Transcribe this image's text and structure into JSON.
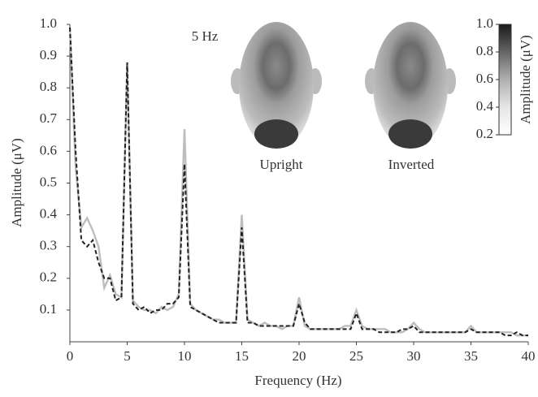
{
  "chart_data": {
    "type": "line",
    "x_label": "Frequency (Hz)",
    "y_label": "Amplitude (μV)",
    "annotations": [
      "5 Hz",
      "Upright",
      "Inverted"
    ],
    "x": [
      0,
      0.5,
      1,
      1.5,
      2,
      2.5,
      3,
      3.5,
      4,
      4.5,
      5,
      5.5,
      6,
      6.5,
      7,
      7.5,
      8,
      8.5,
      9,
      9.5,
      10,
      10.5,
      11,
      11.5,
      12,
      12.5,
      13,
      13.5,
      14,
      14.5,
      15,
      15.5,
      16,
      16.5,
      17,
      17.5,
      18,
      18.5,
      19,
      19.5,
      20,
      20.5,
      21,
      21.5,
      22,
      22.5,
      23,
      23.5,
      24,
      24.5,
      25,
      25.5,
      26,
      26.5,
      27,
      27.5,
      28,
      28.5,
      29,
      29.5,
      30,
      30.5,
      31,
      31.5,
      32,
      32.5,
      33,
      33.5,
      34,
      34.5,
      35,
      35.5,
      36,
      36.5,
      37,
      37.5,
      38,
      38.5,
      39,
      39.5,
      40
    ],
    "series": [
      {
        "color": "#bdbdbd",
        "dash": false,
        "values": [
          0.99,
          0.55,
          0.36,
          0.39,
          0.35,
          0.3,
          0.17,
          0.21,
          0.15,
          0.14,
          0.88,
          0.13,
          0.11,
          0.1,
          0.1,
          0.09,
          0.11,
          0.1,
          0.11,
          0.15,
          0.67,
          0.12,
          0.1,
          0.09,
          0.08,
          0.07,
          0.07,
          0.06,
          0.06,
          0.06,
          0.4,
          0.07,
          0.06,
          0.05,
          0.06,
          0.05,
          0.05,
          0.04,
          0.05,
          0.05,
          0.14,
          0.05,
          0.04,
          0.04,
          0.04,
          0.04,
          0.04,
          0.04,
          0.05,
          0.05,
          0.1,
          0.05,
          0.04,
          0.04,
          0.04,
          0.04,
          0.03,
          0.03,
          0.03,
          0.04,
          0.06,
          0.04,
          0.03,
          0.03,
          0.03,
          0.03,
          0.03,
          0.03,
          0.03,
          0.03,
          0.05,
          0.03,
          0.03,
          0.03,
          0.03,
          0.03,
          0.03,
          0.03,
          0.02,
          0.02,
          0.02
        ]
      },
      {
        "color": "#222222",
        "dash": true,
        "values": [
          0.99,
          0.6,
          0.32,
          0.3,
          0.32,
          0.25,
          0.2,
          0.2,
          0.13,
          0.14,
          0.88,
          0.12,
          0.1,
          0.11,
          0.09,
          0.1,
          0.1,
          0.12,
          0.12,
          0.14,
          0.56,
          0.11,
          0.1,
          0.09,
          0.08,
          0.07,
          0.06,
          0.06,
          0.06,
          0.06,
          0.36,
          0.06,
          0.06,
          0.05,
          0.05,
          0.05,
          0.05,
          0.05,
          0.05,
          0.05,
          0.12,
          0.06,
          0.04,
          0.04,
          0.04,
          0.04,
          0.04,
          0.04,
          0.04,
          0.04,
          0.09,
          0.04,
          0.04,
          0.04,
          0.03,
          0.03,
          0.03,
          0.03,
          0.04,
          0.04,
          0.05,
          0.03,
          0.03,
          0.03,
          0.03,
          0.03,
          0.03,
          0.03,
          0.03,
          0.03,
          0.04,
          0.03,
          0.03,
          0.03,
          0.03,
          0.03,
          0.02,
          0.02,
          0.03,
          0.02,
          0.02
        ]
      }
    ],
    "xlim": [
      0,
      40
    ],
    "xticks": [
      0,
      5,
      10,
      15,
      20,
      25,
      30,
      35,
      40
    ],
    "ylim": [
      0,
      1
    ],
    "yticks": [
      0.1,
      0.2,
      0.3,
      0.4,
      0.5,
      0.6,
      0.7,
      0.8,
      0.9,
      {
        "value": 1,
        "label": "1.0"
      }
    ],
    "colorbar": {
      "label": "Amplitude (μV)",
      "lim": [
        0.2,
        1
      ],
      "ticks": [
        0.2,
        0.4,
        0.6,
        0.8,
        {
          "value": 1,
          "label": "1.0"
        }
      ]
    }
  }
}
